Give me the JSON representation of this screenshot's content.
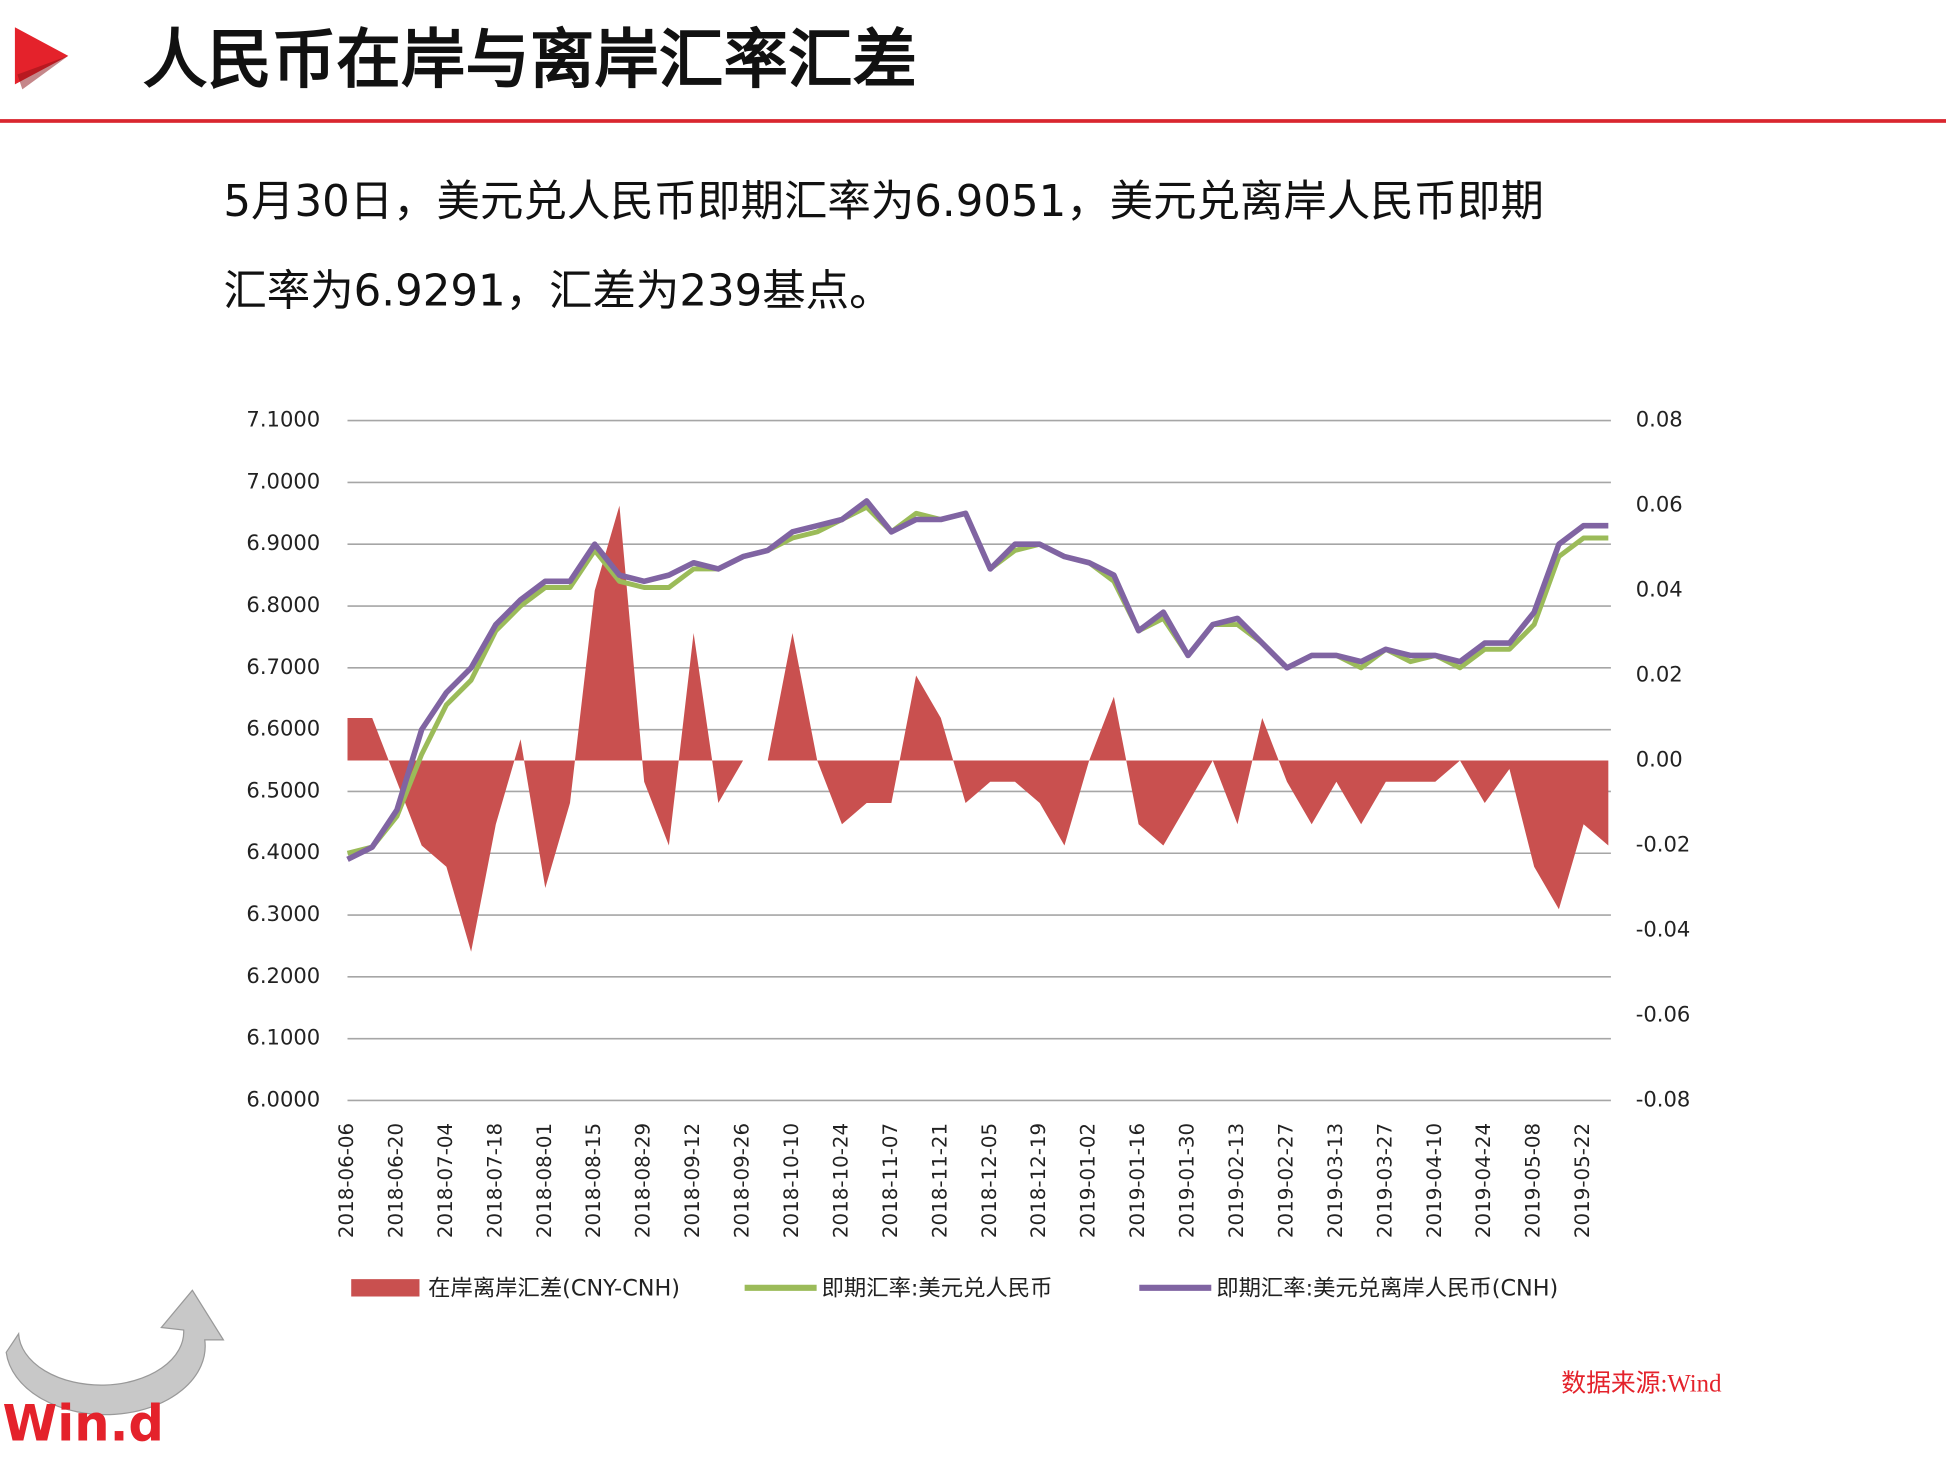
{
  "slide_title": "人民币在岸与离岸汇率汇差",
  "body_lines": [
    "5月30日，美元兑人民币即期汇率为6.9051，美元兑离岸人民币即期",
    "汇率为6.9291，汇差为239基点。"
  ],
  "source": "数据来源:Wind",
  "logo_text": "Win.d",
  "chart_data": {
    "type": "combo",
    "categories": [
      "2018-06-06",
      null,
      "2018-06-20",
      null,
      "2018-07-04",
      null,
      "2018-07-18",
      null,
      "2018-08-01",
      null,
      "2018-08-15",
      null,
      "2018-08-29",
      null,
      "2018-09-12",
      null,
      "2018-09-26",
      null,
      "2018-10-10",
      null,
      "2018-10-24",
      null,
      "2018-11-07",
      null,
      "2018-11-21",
      null,
      "2018-12-05",
      null,
      "2018-12-19",
      null,
      "2019-01-02",
      null,
      "2019-01-16",
      null,
      "2019-01-30",
      null,
      "2019-02-13",
      null,
      "2019-02-27",
      null,
      "2019-03-13",
      null,
      "2019-03-27",
      null,
      "2019-04-10",
      null,
      "2019-04-24",
      null,
      "2019-05-08",
      null,
      "2019-05-22",
      null
    ],
    "series": [
      {
        "name": "在岸离岸汇差(CNY-CNH)",
        "type": "area",
        "axis": "y2",
        "color": "#c9504f",
        "values": [
          0.01,
          0.01,
          -0.005,
          -0.02,
          -0.025,
          -0.045,
          -0.015,
          0.005,
          -0.03,
          -0.01,
          0.04,
          0.06,
          -0.005,
          -0.02,
          0.03,
          -0.01,
          0,
          0,
          0.03,
          0,
          -0.015,
          -0.01,
          -0.01,
          0.02,
          0.01,
          -0.01,
          -0.005,
          -0.005,
          -0.01,
          -0.02,
          0,
          0.015,
          -0.015,
          -0.02,
          -0.01,
          0,
          -0.015,
          0.01,
          -0.005,
          -0.015,
          -0.005,
          -0.015,
          -0.005,
          -0.005,
          -0.005,
          0,
          -0.01,
          -0.002,
          -0.025,
          -0.035,
          -0.015,
          -0.02
        ]
      },
      {
        "name": "即期汇率:美元兑人民币",
        "type": "line",
        "color": "#9bbb59",
        "values": [
          6.4,
          6.41,
          6.46,
          6.56,
          6.64,
          6.68,
          6.76,
          6.8,
          6.83,
          6.83,
          6.89,
          6.84,
          6.83,
          6.83,
          6.86,
          6.86,
          6.88,
          6.89,
          6.91,
          6.92,
          6.94,
          6.96,
          6.92,
          6.95,
          6.94,
          6.95,
          6.86,
          6.89,
          6.9,
          6.88,
          6.87,
          6.84,
          6.76,
          6.78,
          6.72,
          6.77,
          6.77,
          6.74,
          6.7,
          6.72,
          6.72,
          6.7,
          6.73,
          6.71,
          6.72,
          6.7,
          6.73,
          6.73,
          6.77,
          6.88,
          6.91,
          6.91
        ]
      },
      {
        "name": "即期汇率:美元兑离岸人民币(CNH)",
        "type": "line",
        "color": "#8064a2",
        "values": [
          6.39,
          6.41,
          6.47,
          6.6,
          6.66,
          6.7,
          6.77,
          6.81,
          6.84,
          6.84,
          6.9,
          6.85,
          6.84,
          6.85,
          6.87,
          6.86,
          6.88,
          6.89,
          6.92,
          6.93,
          6.94,
          6.97,
          6.92,
          6.94,
          6.94,
          6.95,
          6.86,
          6.9,
          6.9,
          6.88,
          6.87,
          6.85,
          6.76,
          6.79,
          6.72,
          6.77,
          6.78,
          6.74,
          6.7,
          6.72,
          6.72,
          6.71,
          6.73,
          6.72,
          6.72,
          6.71,
          6.74,
          6.74,
          6.79,
          6.9,
          6.93,
          6.93
        ]
      }
    ],
    "ylim": [
      6.0,
      7.1
    ],
    "yticks": [
      {
        "value": 6.0,
        "label": "6.0000"
      },
      {
        "value": 6.1,
        "label": "6.1000"
      },
      {
        "value": 6.2,
        "label": "6.2000"
      },
      {
        "value": 6.3,
        "label": "6.3000"
      },
      {
        "value": 6.4,
        "label": "6.4000"
      },
      {
        "value": 6.5,
        "label": "6.5000"
      },
      {
        "value": 6.6,
        "label": "6.6000"
      },
      {
        "value": 6.7,
        "label": "6.7000"
      },
      {
        "value": 6.8,
        "label": "6.8000"
      },
      {
        "value": 6.9,
        "label": "6.9000"
      },
      {
        "value": 7.0,
        "label": "7.0000"
      },
      {
        "value": 7.1,
        "label": "7.1000"
      }
    ],
    "y2lim": [
      -0.08,
      0.08
    ],
    "y2ticks": [
      -0.08,
      -0.06,
      -0.04,
      -0.02,
      {
        "value": 0,
        "label": "0.00"
      },
      0.02,
      0.04,
      0.06,
      0.08
    ],
    "grid": true,
    "legend": "bottom"
  }
}
